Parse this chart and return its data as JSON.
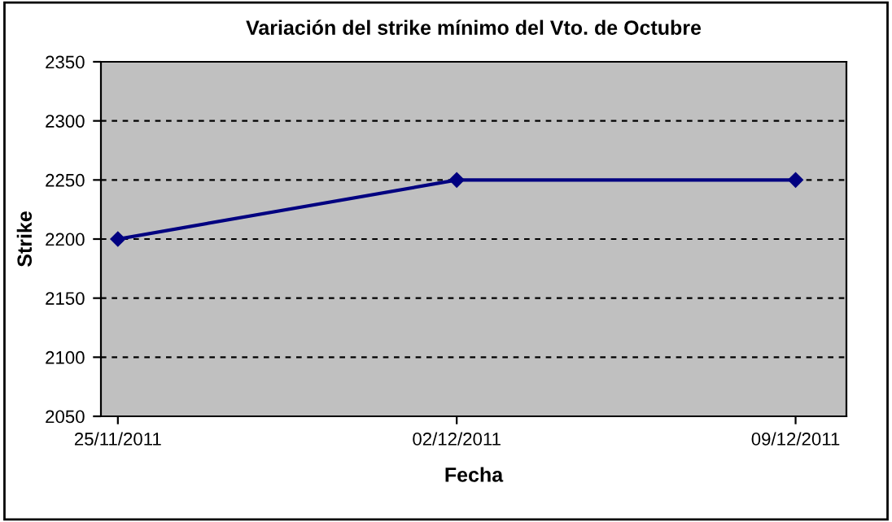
{
  "chart_data": {
    "type": "line",
    "title": "Variación del strike mínimo del Vto. de Octubre",
    "xlabel": "Fecha",
    "ylabel": "Strike",
    "categories": [
      "25/11/2011",
      "02/12/2011",
      "09/12/2011"
    ],
    "series": [
      {
        "color": "#000080",
        "values": [
          2200,
          2250,
          2250
        ]
      }
    ],
    "ylim": [
      2050,
      2350
    ],
    "yticks": [
      2050,
      2100,
      2150,
      2200,
      2250,
      2300,
      2350
    ],
    "grid": "y",
    "marker": "diamond",
    "line_style": "solid",
    "legend": false
  }
}
